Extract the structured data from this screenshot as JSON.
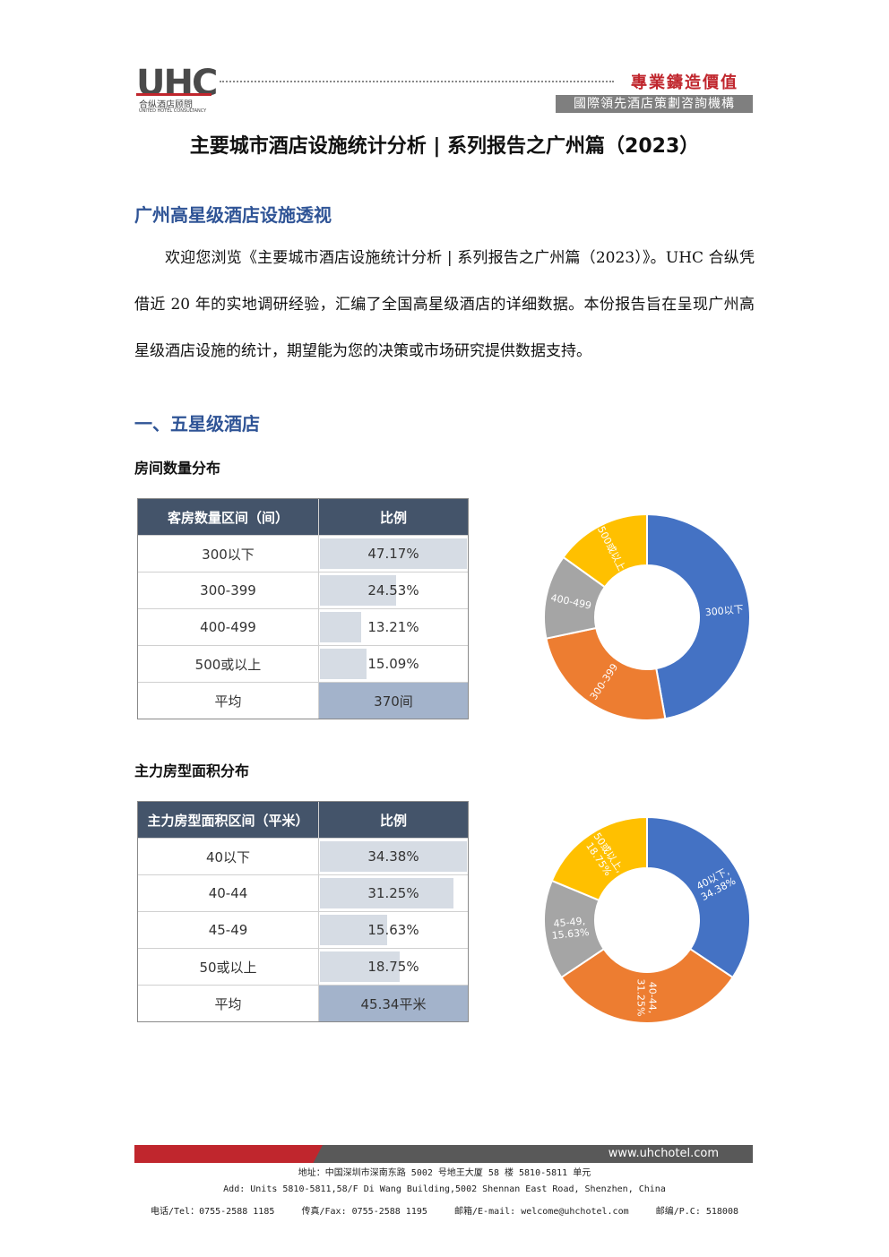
{
  "header": {
    "logo": "UHC",
    "logo_cn": "合纵酒店顾問",
    "logo_en": "UNITED HOTEL CONSULTANCY",
    "slogan": "專業鑄造價值",
    "tagline": "國際領先酒店策劃咨詢機構"
  },
  "title": "主要城市酒店设施统计分析 | 系列报告之广州篇（2023）",
  "section": "广州高星级酒店设施透视",
  "intro": "欢迎您浏览《主要城市酒店设施统计分析 | 系列报告之广州篇（2023）》。UHC 合纵凭借近 20 年的实地调研经验，汇编了全国高星级酒店的详细数据。本份报告旨在呈现广州高星级酒店设施的统计，期望能为您的决策或市场研究提供数据支持。",
  "part": "一、五星级酒店",
  "tables": [
    {
      "heading": "房间数量分布",
      "columns": [
        "客房数量区间（间）",
        "比例"
      ],
      "rows": [
        {
          "label": "300以下",
          "value": 47.17,
          "value_label": "47.17%",
          "color": "#4472c4"
        },
        {
          "label": "300-399",
          "value": 24.53,
          "value_label": "24.53%",
          "color": "#ed7d31"
        },
        {
          "label": "400-499",
          "value": 13.21,
          "value_label": "13.21%",
          "color": "#a5a5a5"
        },
        {
          "label": "500或以上",
          "value": 15.09,
          "value_label": "15.09%",
          "color": "#ffc000"
        }
      ],
      "average": [
        "平均",
        "370间"
      ],
      "chart_labels": [
        [
          "300以下"
        ],
        [
          "300-399"
        ],
        [
          "400-499"
        ],
        [
          "500或以上"
        ]
      ]
    },
    {
      "heading": "主力房型面积分布",
      "columns": [
        "主力房型面积区间（平米）",
        "比例"
      ],
      "rows": [
        {
          "label": "40以下",
          "value": 34.38,
          "value_label": "34.38%",
          "color": "#4472c4"
        },
        {
          "label": "40-44",
          "value": 31.25,
          "value_label": "31.25%",
          "color": "#ed7d31"
        },
        {
          "label": "45-49",
          "value": 15.63,
          "value_label": "15.63%",
          "color": "#a5a5a5"
        },
        {
          "label": "50或以上",
          "value": 18.75,
          "value_label": "18.75%",
          "color": "#ffc000"
        }
      ],
      "average": [
        "平均",
        "45.34平米"
      ],
      "chart_labels": [
        [
          "40以下,",
          "34.38%"
        ],
        [
          "40-44,",
          "31.25%"
        ],
        [
          "45-49,",
          "15.63%"
        ],
        [
          "50或以上,",
          "18.75%"
        ]
      ]
    }
  ],
  "footer": {
    "url": "www.uhchotel.com",
    "address_cn": "地址：中国深圳市深南东路 5002 号地王大厦 58 楼 5810-5811 单元",
    "address_en": "Add: Units 5810-5811,58/F Di Wang Building,5002 Shennan East Road, Shenzhen, China",
    "tel": "电话/Tel：0755-2588 1185",
    "fax": "传真/Fax: 0755-2588 1195",
    "email": "邮箱/E-mail: welcome@uhchotel.com",
    "postcode": "邮编/P.C: 518008"
  }
}
